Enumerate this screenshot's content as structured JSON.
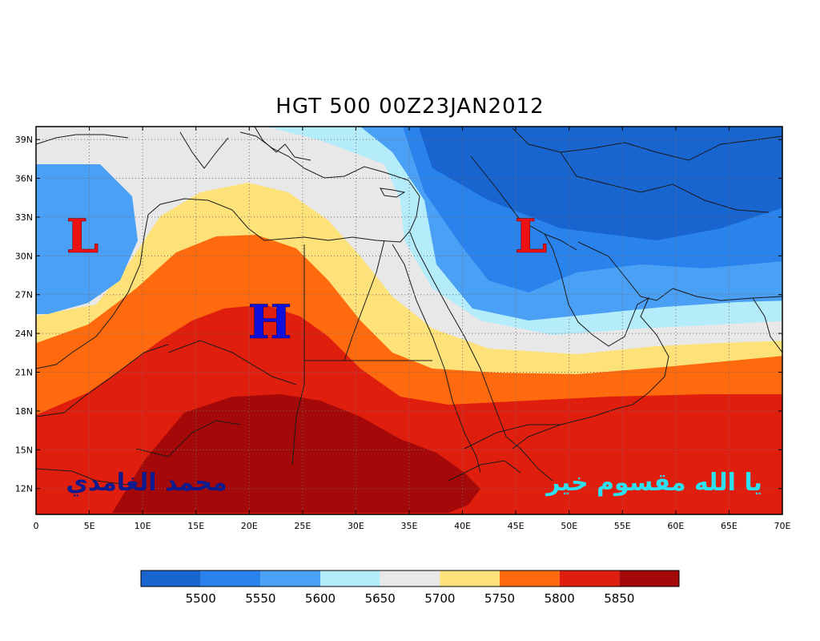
{
  "title": "HGT 500 00Z23JAN2012",
  "lat_labels": [
    "12N",
    "15N",
    "18N",
    "21N",
    "24N",
    "27N",
    "30N",
    "33N",
    "36N",
    "39N"
  ],
  "lon_labels": [
    "0",
    "5E",
    "10E",
    "15E",
    "20E",
    "25E",
    "30E",
    "35E",
    "40E",
    "45E",
    "50E",
    "55E",
    "60E",
    "65E",
    "70E"
  ],
  "systems": [
    {
      "id": "low-west",
      "label": "L",
      "color": "#ee1111"
    },
    {
      "id": "high-center",
      "label": "H",
      "color": "#1010dd"
    },
    {
      "id": "low-east",
      "label": "L",
      "color": "#ee1111"
    }
  ],
  "colorbar": {
    "colors": [
      "#1965d0",
      "#2a83ec",
      "#4aa0f4",
      "#b4ecfa",
      "#e8e8e8",
      "#fde27a",
      "#ff6a0f",
      "#e01e0e",
      "#a50808"
    ],
    "labels": [
      "5500",
      "5550",
      "5600",
      "5650",
      "5700",
      "5750",
      "5800",
      "5850"
    ]
  },
  "annotations": {
    "left_text": "محمد الغامدي",
    "left_color": "#0b1a8c",
    "right_text": "يا الله مقسوم خير",
    "right_color": "#2de0f0"
  }
}
